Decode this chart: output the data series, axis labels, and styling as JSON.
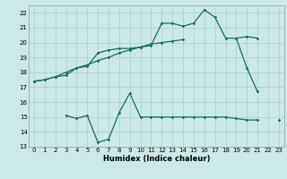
{
  "xlabel": "Humidex (Indice chaleur)",
  "bg_color": "#cce8e8",
  "grid_color": "#aacccc",
  "line_color": "#1a6b5a",
  "xlim": [
    -0.5,
    23.5
  ],
  "ylim": [
    13,
    22.5
  ],
  "yticks": [
    13,
    14,
    15,
    16,
    17,
    18,
    19,
    20,
    21,
    22
  ],
  "xticks": [
    0,
    1,
    2,
    3,
    4,
    5,
    6,
    7,
    8,
    9,
    10,
    11,
    12,
    13,
    14,
    15,
    16,
    17,
    18,
    19,
    20,
    21,
    22,
    23
  ],
  "line1_x": [
    0,
    1,
    2,
    3,
    4,
    5,
    6,
    7,
    8,
    9,
    10,
    11,
    12,
    13,
    14,
    15,
    16,
    17,
    18,
    19,
    20,
    21
  ],
  "line1_y": [
    17.4,
    17.5,
    17.7,
    17.8,
    18.3,
    18.4,
    19.3,
    19.5,
    19.6,
    19.6,
    19.7,
    19.8,
    21.3,
    21.3,
    21.1,
    21.3,
    22.2,
    21.7,
    20.3,
    20.3,
    18.3,
    16.7
  ],
  "line2_x": [
    0,
    1,
    2,
    3,
    4,
    5,
    6,
    7,
    8,
    9,
    10,
    11,
    12,
    13,
    14,
    19,
    20,
    21
  ],
  "line2_y": [
    17.4,
    17.5,
    17.7,
    18.0,
    18.3,
    18.5,
    18.8,
    19.0,
    19.3,
    19.5,
    19.7,
    19.9,
    20.0,
    20.1,
    20.2,
    20.3,
    20.4,
    20.3
  ],
  "line3_x_seg1": [
    3,
    4,
    5,
    6,
    7,
    8,
    9,
    10,
    11,
    12,
    13,
    14,
    15,
    16,
    17,
    18,
    19,
    20,
    21
  ],
  "line3_y_seg1": [
    15.1,
    14.9,
    15.1,
    13.3,
    13.5,
    15.3,
    16.6,
    15.0,
    15.0,
    15.0,
    15.0,
    15.0,
    15.0,
    15.0,
    15.0,
    15.0,
    14.9,
    14.8,
    14.8
  ],
  "line3_x_seg2": [
    23
  ],
  "line3_y_seg2": [
    14.8
  ]
}
